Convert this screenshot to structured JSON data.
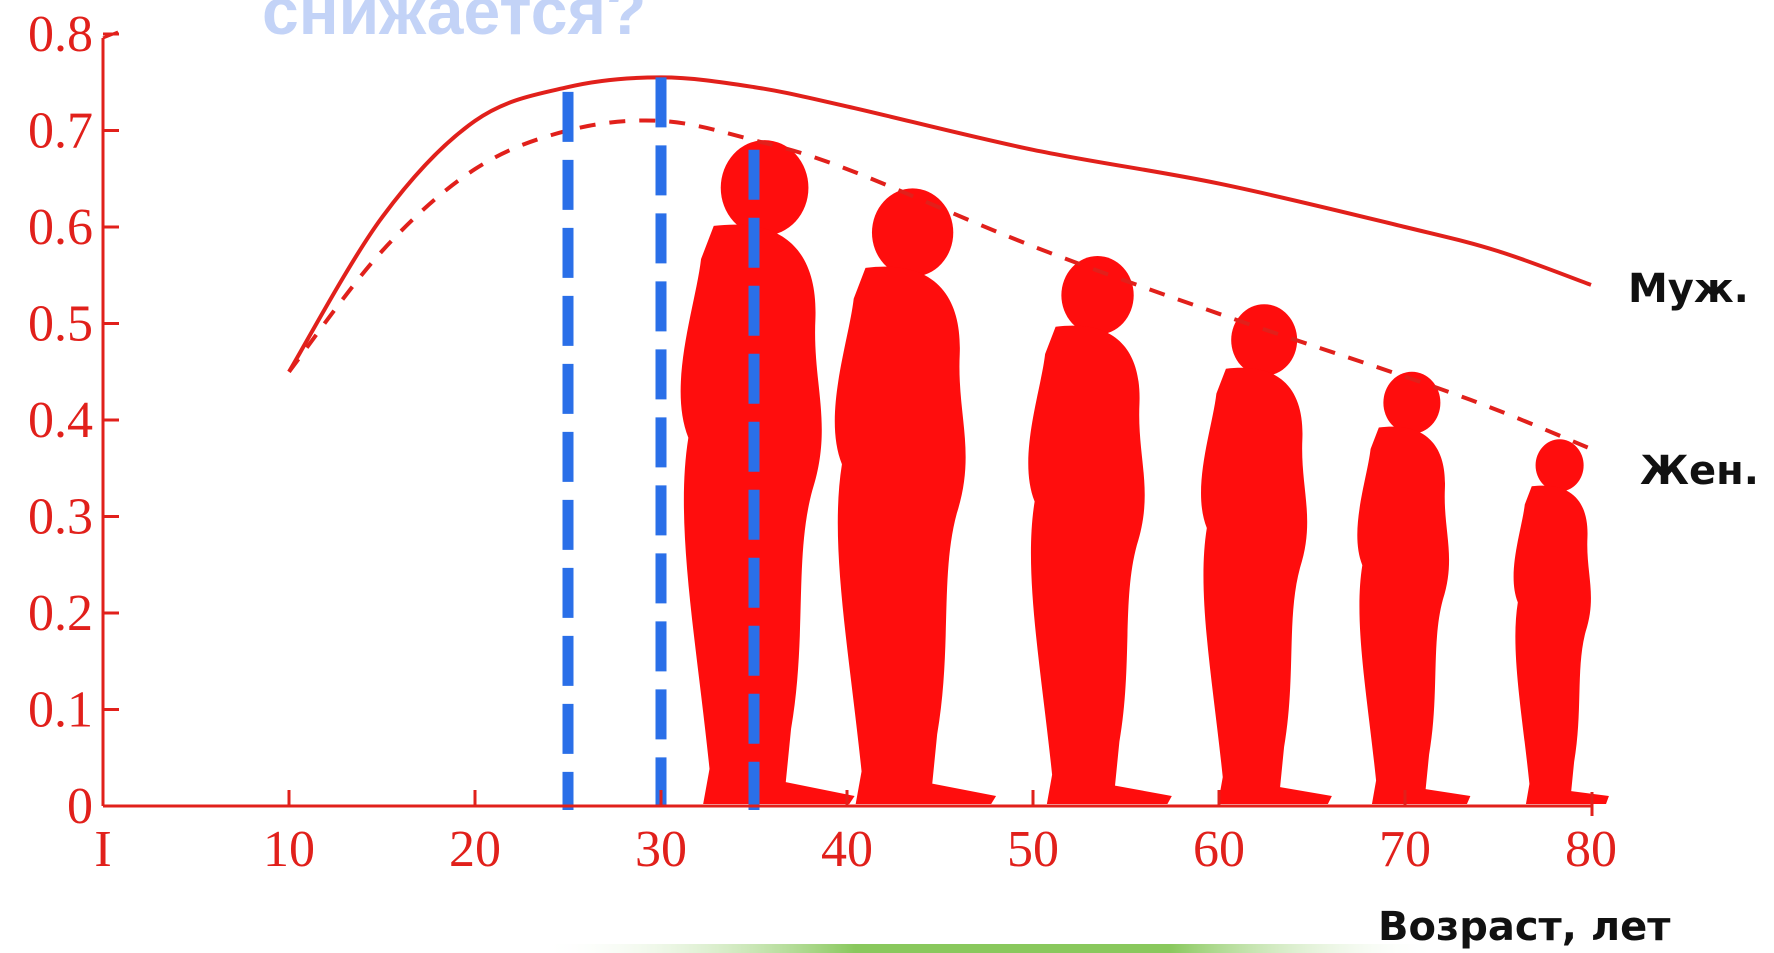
{
  "title_fragment": "снижается?",
  "colors": {
    "axis": "#e1201b",
    "curve": "#e1201b",
    "figure": "#ff0d0d",
    "marker": "#2a6fe8",
    "title": "#c3d3f7",
    "bottom_bar": "#7cc24b"
  },
  "chart_data": {
    "type": "line",
    "title": "",
    "xlabel": "Возраст, лет",
    "ylabel": "",
    "xlim": [
      0,
      80
    ],
    "ylim": [
      0,
      0.8
    ],
    "x_ticks": [
      "I",
      "10",
      "20",
      "30",
      "40",
      "50",
      "60",
      "70",
      "80"
    ],
    "x_tick_values": [
      0,
      10,
      20,
      30,
      40,
      50,
      60,
      70,
      80
    ],
    "y_ticks": [
      "0",
      "0.1",
      "0.2",
      "0.3",
      "0.4",
      "0.5",
      "0.6",
      "0.7",
      "0.8"
    ],
    "y_tick_values": [
      0,
      0.1,
      0.2,
      0.3,
      0.4,
      0.5,
      0.6,
      0.7,
      0.8
    ],
    "series": [
      {
        "name": "Муж.",
        "style": "solid",
        "x": [
          10,
          15,
          20,
          25,
          30,
          35,
          40,
          50,
          60,
          70,
          75,
          80
        ],
        "y": [
          0.45,
          0.61,
          0.71,
          0.745,
          0.755,
          0.745,
          0.725,
          0.68,
          0.645,
          0.6,
          0.575,
          0.54
        ]
      },
      {
        "name": "Жен.",
        "style": "dashed",
        "x": [
          10,
          15,
          20,
          25,
          30,
          35,
          40,
          50,
          60,
          70,
          75,
          80
        ],
        "y": [
          0.45,
          0.575,
          0.66,
          0.7,
          0.71,
          0.69,
          0.66,
          0.58,
          0.51,
          0.445,
          0.41,
          0.37
        ]
      }
    ],
    "vertical_markers": [
      25,
      30,
      35
    ],
    "figure_ages": [
      35,
      43,
      53,
      62,
      70,
      78
    ],
    "figure_heights": [
      0.69,
      0.64,
      0.57,
      0.52,
      0.45,
      0.38
    ]
  }
}
